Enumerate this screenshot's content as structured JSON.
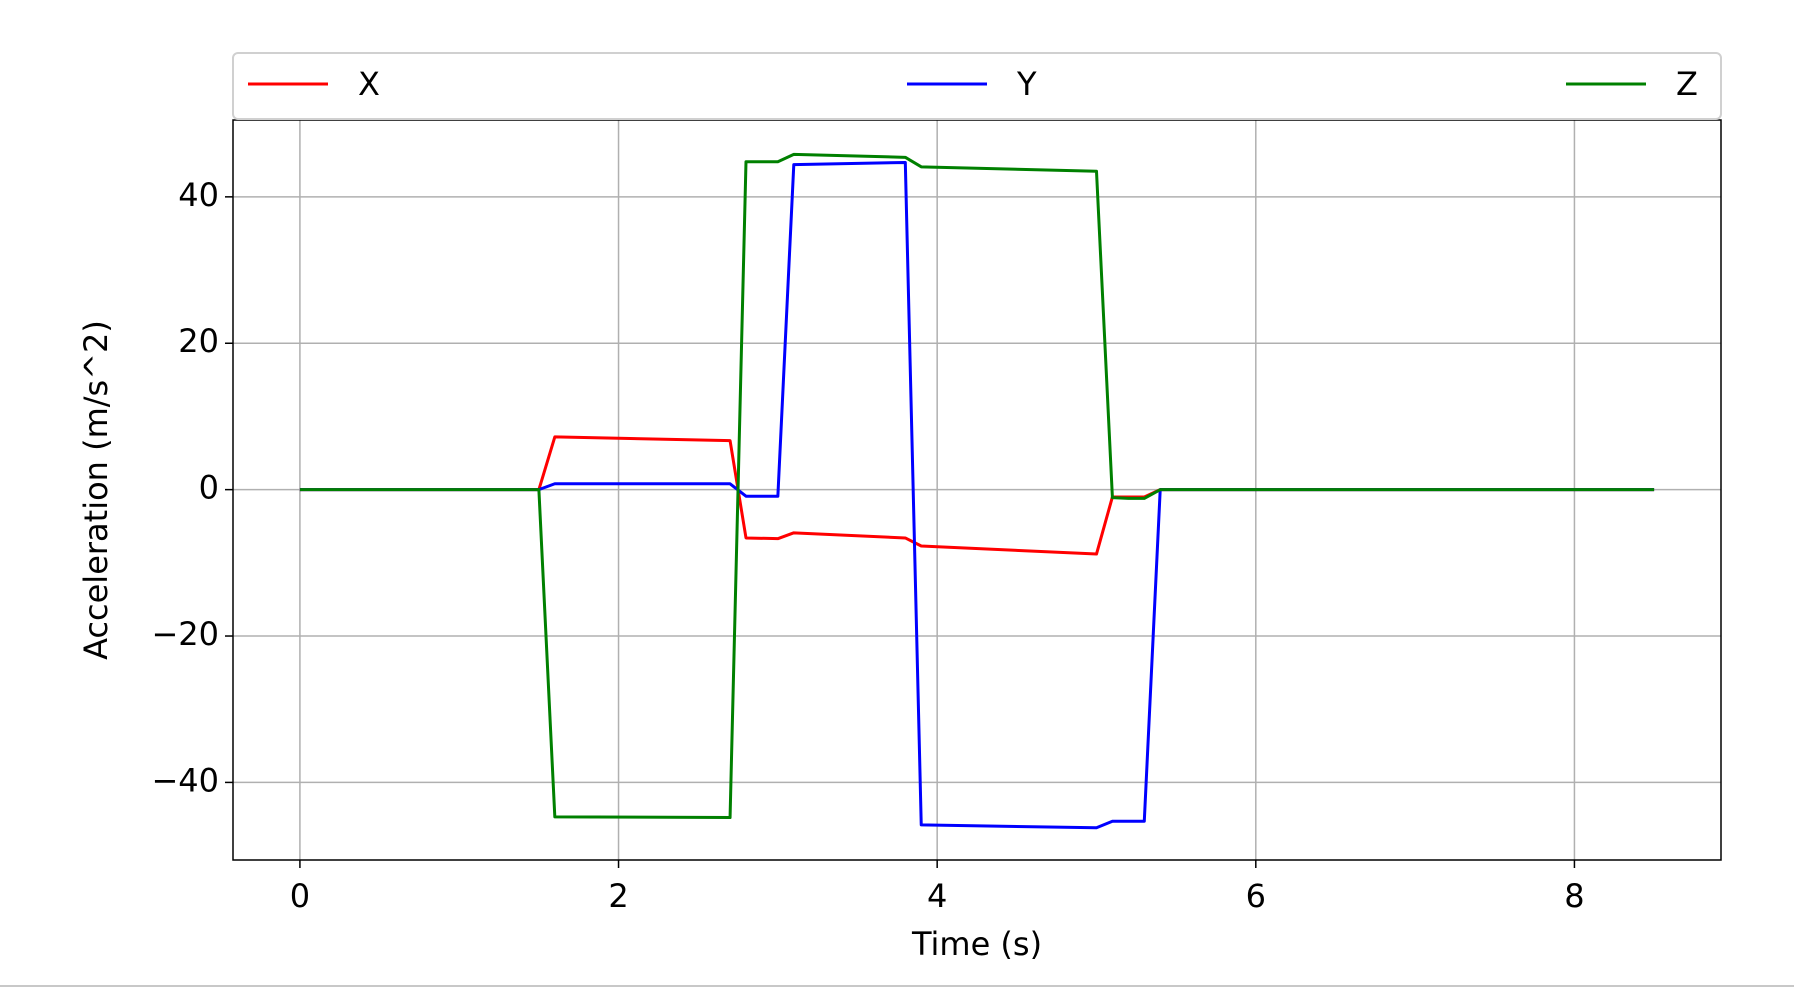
{
  "chart_data": {
    "type": "line",
    "xlabel": "Time (s)",
    "ylabel": "Acceleration (m/s^2)",
    "x": [
      0,
      1.5,
      1.6,
      2.7,
      2.8,
      3.0,
      3.1,
      3.8,
      3.9,
      5.0,
      5.1,
      5.2,
      5.3,
      5.4,
      8.5
    ],
    "series": [
      {
        "name": "X",
        "color": "#ff0000",
        "values": [
          0,
          0,
          7.2,
          6.7,
          -6.6,
          -6.7,
          -5.9,
          -6.6,
          -7.7,
          -8.8,
          -1.0,
          -1.0,
          -1.0,
          0,
          0
        ]
      },
      {
        "name": "Y",
        "color": "#0000ff",
        "values": [
          0,
          0,
          0.8,
          0.8,
          -0.9,
          -0.9,
          44.4,
          44.7,
          -45.8,
          -46.2,
          -45.3,
          -45.3,
          -45.3,
          0,
          0
        ]
      },
      {
        "name": "Z",
        "color": "#008000",
        "values": [
          0,
          0,
          -44.7,
          -44.8,
          44.8,
          44.8,
          45.8,
          45.4,
          44.1,
          43.5,
          -1.1,
          -1.2,
          -1.2,
          0,
          0
        ]
      }
    ],
    "xlim": [
      -0.42,
      8.92
    ],
    "ylim": [
      -50.6,
      50.5
    ],
    "xticks": [
      0,
      2,
      4,
      6,
      8
    ],
    "yticks": [
      {
        "value": -40,
        "label": "−40"
      },
      {
        "value": -20,
        "label": "−20"
      },
      0,
      20,
      40
    ],
    "grid": true,
    "legend": "top"
  }
}
